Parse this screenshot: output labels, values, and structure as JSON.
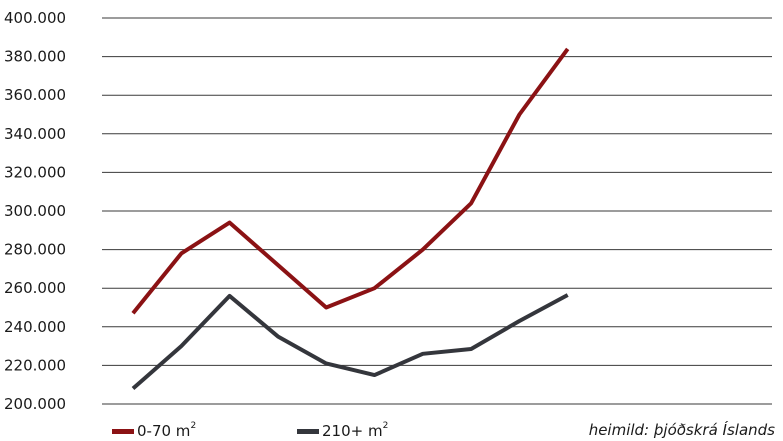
{
  "chart_data": {
    "type": "line",
    "x": [
      1,
      2,
      3,
      4,
      5,
      6,
      7,
      8,
      9,
      10,
      11
    ],
    "series": [
      {
        "name": "0-70 m²",
        "name_base": "0-70 m",
        "name_sup": "2",
        "color": "#8b1214",
        "values": [
          247000,
          278000,
          294000,
          272000,
          250000,
          260000,
          280000,
          304000,
          350000,
          384000,
          null
        ]
      },
      {
        "name": "210+ m²",
        "name_base": "210+ m",
        "name_sup": "2",
        "color": "#34363c",
        "values": [
          208000,
          230000,
          256000,
          235000,
          221000,
          215000,
          226000,
          228500,
          243000,
          256500,
          null
        ]
      }
    ],
    "yticks": [
      "200.000",
      "220.000",
      "240.000",
      "260.000",
      "280.000",
      "300.000",
      "320.000",
      "340.000",
      "360.000",
      "380.000",
      "400.000"
    ],
    "ylim": [
      200000,
      400000
    ],
    "grid": true,
    "legend_position": "bottom-left",
    "source_note": "heimild: þjóðskrá Íslands"
  }
}
